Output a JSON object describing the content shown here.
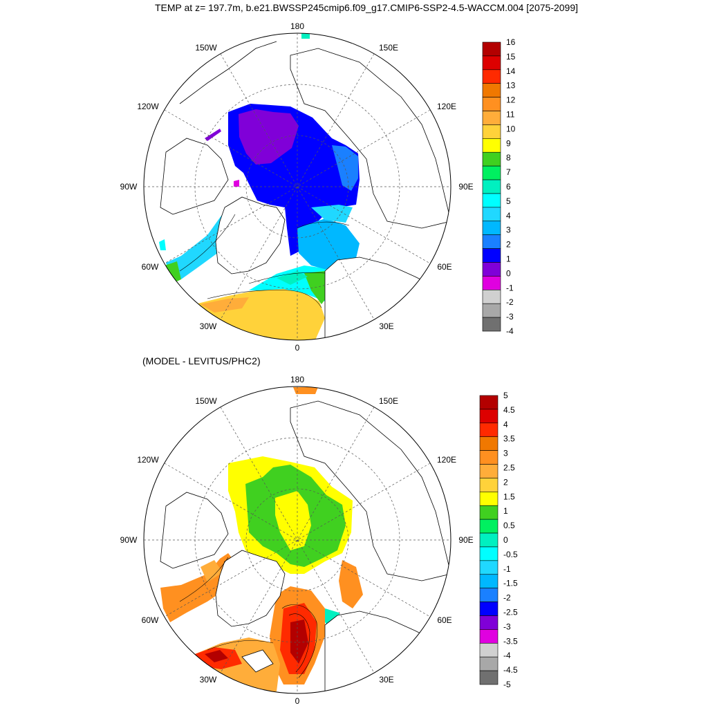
{
  "top_panel": {
    "title": "TEMP at z= 197.7m, b.e21.BWSSP245cmip6.f09_g17.CMIP6-SSP2-4.5-WACCM.004 [2075-2099]",
    "lon_labels": {
      "top": "180",
      "tl": "150W",
      "tr": "150E",
      "ul": "120W",
      "ur": "120E",
      "l": "90W",
      "r": "90E",
      "ll": "60W",
      "lr": "60E",
      "bl": "30W",
      "br": "30E",
      "bottom": "0"
    },
    "colorbar_labels": [
      "16",
      "15",
      "14",
      "13",
      "12",
      "11",
      "10",
      "9",
      "8",
      "7",
      "6",
      "5",
      "4",
      "3",
      "2",
      "1",
      "0",
      "-1",
      "-2",
      "-3",
      "-4"
    ],
    "colorbar_colors": [
      "#b30000",
      "#dd0000",
      "#ff2a00",
      "#f07800",
      "#ff9020",
      "#ffad3a",
      "#ffd23a",
      "#ffff00",
      "#40d020",
      "#00f060",
      "#00f0c0",
      "#00ffff",
      "#20d8ff",
      "#00b8ff",
      "#1a80ff",
      "#0000ff",
      "#8000d8",
      "#e000e0",
      "#d0d0d0",
      "#a8a8a8",
      "#707070"
    ]
  },
  "bottom_panel": {
    "title": "(MODEL - LEVITUS/PHC2)",
    "lon_labels": {
      "top": "180",
      "tl": "150W",
      "tr": "150E",
      "ul": "120W",
      "ur": "120E",
      "l": "90W",
      "r": "90E",
      "ll": "60W",
      "lr": "60E",
      "bl": "30W",
      "br": "30E",
      "bottom": "0"
    },
    "colorbar_labels": [
      "5",
      "4.5",
      "4",
      "3.5",
      "3",
      "2.5",
      "2",
      "1.5",
      "1",
      "0.5",
      "0",
      "-0.5",
      "-1",
      "-1.5",
      "-2",
      "-2.5",
      "-3",
      "-3.5",
      "-4",
      "-4.5",
      "-5"
    ],
    "colorbar_colors": [
      "#b30000",
      "#dd0000",
      "#ff2a00",
      "#f07800",
      "#ff9020",
      "#ffad3a",
      "#ffd23a",
      "#ffff00",
      "#40d020",
      "#00f060",
      "#00f0c0",
      "#00ffff",
      "#20d8ff",
      "#00b8ff",
      "#1a80ff",
      "#0000ff",
      "#8000d8",
      "#e000e0",
      "#d0d0d0",
      "#a8a8a8",
      "#707070"
    ]
  }
}
